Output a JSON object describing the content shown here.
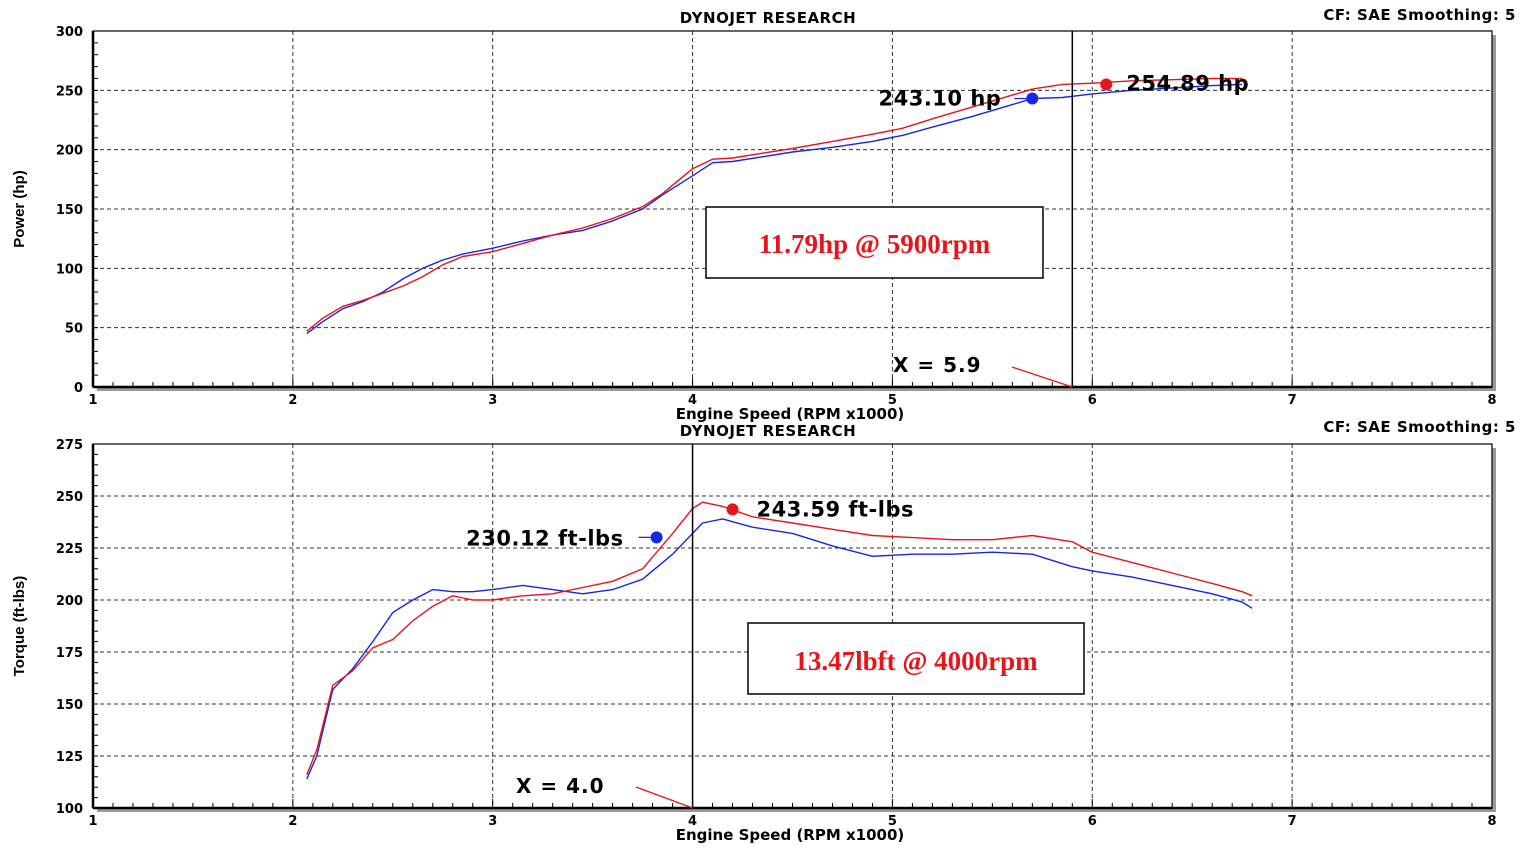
{
  "chart_data": [
    {
      "type": "line",
      "title": "DYNOJET RESEARCH",
      "settings": "CF: SAE  Smoothing: 5",
      "xlabel": "Engine Speed (RPM x1000)",
      "ylabel": "Power (hp)",
      "xlim": [
        1,
        8
      ],
      "ylim": [
        0,
        300
      ],
      "x_ticks": [
        "1",
        "2",
        "3",
        "4",
        "5",
        "6",
        "7",
        "8"
      ],
      "y_ticks": [
        "0",
        "50",
        "100",
        "150",
        "200",
        "250",
        "300"
      ],
      "grid": true,
      "colors": {
        "red": "#e8141c",
        "blue": "#1626e6"
      },
      "series": [
        {
          "color": "#1626e6",
          "x": [
            2.07,
            2.15,
            2.25,
            2.35,
            2.45,
            2.55,
            2.65,
            2.75,
            2.85,
            3.0,
            3.15,
            3.3,
            3.45,
            3.6,
            3.75,
            3.85,
            4.0,
            4.1,
            4.2,
            4.35,
            4.5,
            4.7,
            4.9,
            5.05,
            5.2,
            5.4,
            5.6,
            5.7,
            5.85,
            6.0,
            6.2,
            6.4,
            6.6,
            6.75
          ],
          "values": [
            45,
            55,
            66,
            72,
            80,
            91,
            100,
            107,
            112,
            117,
            123,
            128,
            132,
            140,
            150,
            162,
            178,
            189,
            190,
            194,
            198,
            202,
            207,
            212,
            219,
            228,
            238,
            243,
            244,
            247,
            250,
            252,
            254,
            255
          ]
        },
        {
          "color": "#e8141c",
          "x": [
            2.07,
            2.15,
            2.25,
            2.35,
            2.45,
            2.55,
            2.65,
            2.75,
            2.85,
            3.0,
            3.15,
            3.3,
            3.45,
            3.6,
            3.75,
            3.85,
            4.0,
            4.1,
            4.2,
            4.35,
            4.5,
            4.7,
            4.9,
            5.05,
            5.2,
            5.4,
            5.6,
            5.7,
            5.85,
            6.0,
            6.2,
            6.4,
            6.6,
            6.75
          ],
          "values": [
            47,
            58,
            68,
            73,
            79,
            85,
            93,
            103,
            110,
            114,
            121,
            128,
            134,
            142,
            152,
            163,
            184,
            192,
            193,
            197,
            201,
            207,
            213,
            218,
            226,
            236,
            246,
            251,
            255,
            256,
            258,
            259,
            260,
            260
          ]
        }
      ],
      "annotations": [
        {
          "text": "243.10 hp",
          "x": 5.7,
          "y": 243.1,
          "color": "#1626e6"
        },
        {
          "text": "254.89 hp",
          "x": 6.07,
          "y": 254.89,
          "color": "#e8141c"
        },
        {
          "text": "11.79hp @ 5900rpm",
          "color": "#e8141c"
        },
        {
          "text": "X = 5.9",
          "cursor_x": 5.9
        }
      ]
    },
    {
      "type": "line",
      "title": "DYNOJET RESEARCH",
      "settings": "CF: SAE  Smoothing: 5",
      "xlabel": "Engine Speed (RPM x1000)",
      "ylabel": "Torque (ft-lbs)",
      "xlim": [
        1,
        8
      ],
      "ylim": [
        100,
        275
      ],
      "x_ticks": [
        "1",
        "2",
        "3",
        "4",
        "5",
        "6",
        "7",
        "8"
      ],
      "y_ticks": [
        "100",
        "125",
        "150",
        "175",
        "200",
        "225",
        "250",
        "275"
      ],
      "grid": true,
      "colors": {
        "red": "#e8141c",
        "blue": "#1626e6"
      },
      "series": [
        {
          "color": "#1626e6",
          "x": [
            2.07,
            2.12,
            2.2,
            2.3,
            2.4,
            2.5,
            2.6,
            2.7,
            2.8,
            2.9,
            3.0,
            3.15,
            3.3,
            3.45,
            3.6,
            3.75,
            3.9,
            4.0,
            4.05,
            4.15,
            4.3,
            4.5,
            4.7,
            4.9,
            5.1,
            5.3,
            5.5,
            5.7,
            5.9,
            6.0,
            6.2,
            6.4,
            6.6,
            6.75,
            6.8
          ],
          "values": [
            114,
            125,
            157,
            167,
            180,
            194,
            200,
            205,
            204,
            204,
            205,
            207,
            205,
            203,
            205,
            210,
            222,
            232,
            237,
            239,
            235,
            232,
            226,
            221,
            222,
            222,
            223,
            222,
            216,
            214,
            211,
            207,
            203,
            199,
            196
          ]
        },
        {
          "color": "#e8141c",
          "x": [
            2.07,
            2.12,
            2.2,
            2.3,
            2.4,
            2.5,
            2.6,
            2.7,
            2.8,
            2.9,
            3.0,
            3.15,
            3.3,
            3.45,
            3.6,
            3.75,
            3.9,
            4.0,
            4.05,
            4.15,
            4.3,
            4.5,
            4.7,
            4.9,
            5.1,
            5.3,
            5.5,
            5.7,
            5.9,
            6.0,
            6.2,
            6.4,
            6.6,
            6.75,
            6.8
          ],
          "values": [
            116,
            128,
            159,
            166,
            177,
            181,
            190,
            197,
            202,
            200,
            200,
            202,
            203,
            206,
            209,
            215,
            232,
            244,
            247,
            245,
            240,
            237,
            234,
            231,
            230,
            229,
            229,
            231,
            228,
            223,
            218,
            213,
            208,
            204,
            202
          ]
        }
      ],
      "annotations": [
        {
          "text": "230.12 ft-lbs",
          "x": 3.82,
          "y": 230.12,
          "color": "#1626e6"
        },
        {
          "text": "243.59 ft-lbs",
          "x": 4.2,
          "y": 243.59,
          "color": "#e8141c"
        },
        {
          "text": "13.47lbft @ 4000rpm",
          "color": "#e8141c"
        },
        {
          "text": "X = 4.0",
          "cursor_x": 4.0
        }
      ]
    }
  ]
}
